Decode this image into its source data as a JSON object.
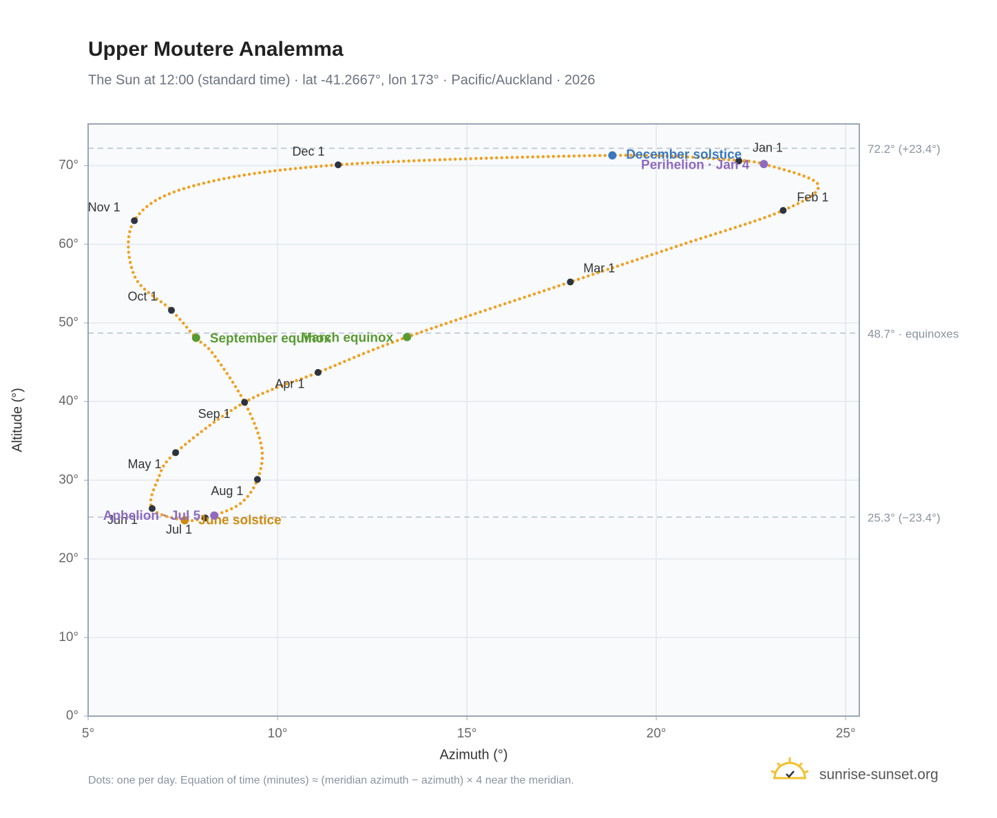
{
  "chart_data": {
    "type": "analemma",
    "title": "Upper Moutere Analemma",
    "subtitle": "The Sun at 12:00 (standard time) · lat -41.2667°, lon 173° · Pacific/Auckland · 2026",
    "x_label": "Azimuth (°)",
    "y_label": "Altitude (°)",
    "xlim": [
      5,
      25.36
    ],
    "ylim": [
      0,
      75.3
    ],
    "xticks": [
      {
        "value": 5,
        "label": "5°"
      },
      {
        "value": 10,
        "label": "10°"
      },
      {
        "value": 15,
        "label": "15°"
      },
      {
        "value": 20,
        "label": "20°"
      },
      {
        "value": 25,
        "label": "25°"
      }
    ],
    "yticks": [
      {
        "value": 0,
        "label": "0°"
      },
      {
        "value": 10,
        "label": "10°"
      },
      {
        "value": 20,
        "label": "20°"
      },
      {
        "value": 30,
        "label": "30°"
      },
      {
        "value": 40,
        "label": "40°"
      },
      {
        "value": 50,
        "label": "50°"
      },
      {
        "value": 60,
        "label": "60°"
      },
      {
        "value": 70,
        "label": "70°"
      }
    ],
    "grid": true,
    "curve": {
      "color": "#f0a020",
      "x": [
        22.18,
        22.84,
        24.27,
        23.35,
        20.58,
        17.73,
        13.42,
        11.07,
        9.13,
        7.31,
        6.85,
        6.69,
        7.55,
        8.09,
        8.33,
        9.04,
        9.47,
        9.58,
        9.13,
        8.31,
        7.85,
        7.2,
        6.22,
        6.22,
        7.76,
        11.6,
        18.84,
        22.1
      ],
      "y": [
        70.6,
        70.2,
        67.6,
        64.3,
        59.8,
        55.2,
        48.2,
        43.7,
        39.9,
        33.5,
        30.2,
        26.4,
        24.9,
        25.2,
        25.5,
        27.1,
        30.1,
        34.2,
        39.9,
        46.0,
        48.1,
        51.6,
        56.0,
        63.0,
        67.4,
        70.1,
        71.3,
        70.7
      ]
    },
    "months": {
      "color": "#2d3440",
      "labels": [
        "Jan 1",
        "Feb 1",
        "Mar 1",
        "Apr 1",
        "May 1",
        "Jun 1",
        "Jul 1",
        "Aug 1",
        "Sep 1",
        "Oct 1",
        "Nov 1",
        "Dec 1"
      ],
      "x": [
        22.18,
        23.35,
        17.73,
        11.07,
        7.31,
        6.69,
        8.09,
        9.47,
        9.13,
        7.2,
        6.22,
        11.6
      ],
      "y": [
        70.6,
        64.3,
        55.2,
        43.7,
        33.5,
        26.4,
        25.2,
        30.1,
        39.9,
        51.6,
        63.0,
        70.1
      ]
    },
    "events": [
      {
        "label": "December solstice",
        "color": "#3a78c0",
        "x": 18.84,
        "y": 71.3
      },
      {
        "label": "Perihelion · Jan 4",
        "color": "#8e6bbf",
        "x": 22.84,
        "y": 70.2
      },
      {
        "label": "March equinox",
        "color": "#5a9a32",
        "x": 13.42,
        "y": 48.2
      },
      {
        "label": "September equinox",
        "color": "#5a9a32",
        "x": 7.85,
        "y": 48.1
      },
      {
        "label": "June solstice",
        "color": "#d08a10",
        "x": 7.55,
        "y": 24.9
      },
      {
        "label": "Aphelion · Jul 5",
        "color": "#8e6bbf",
        "x": 8.33,
        "y": 25.5
      }
    ],
    "reference_lines": [
      {
        "value": 72.2,
        "label": "72.2° (+23.4°)"
      },
      {
        "value": 48.7,
        "label": "48.7° · equinoxes"
      },
      {
        "value": 25.3,
        "label": "25.3° (−23.4°)"
      }
    ],
    "footnote": "Dots: one per day. Equation of time (minutes) ≈ (meridian azimuth − azimuth) × 4 near the meridian.",
    "brand": "sunrise-sunset.org"
  }
}
